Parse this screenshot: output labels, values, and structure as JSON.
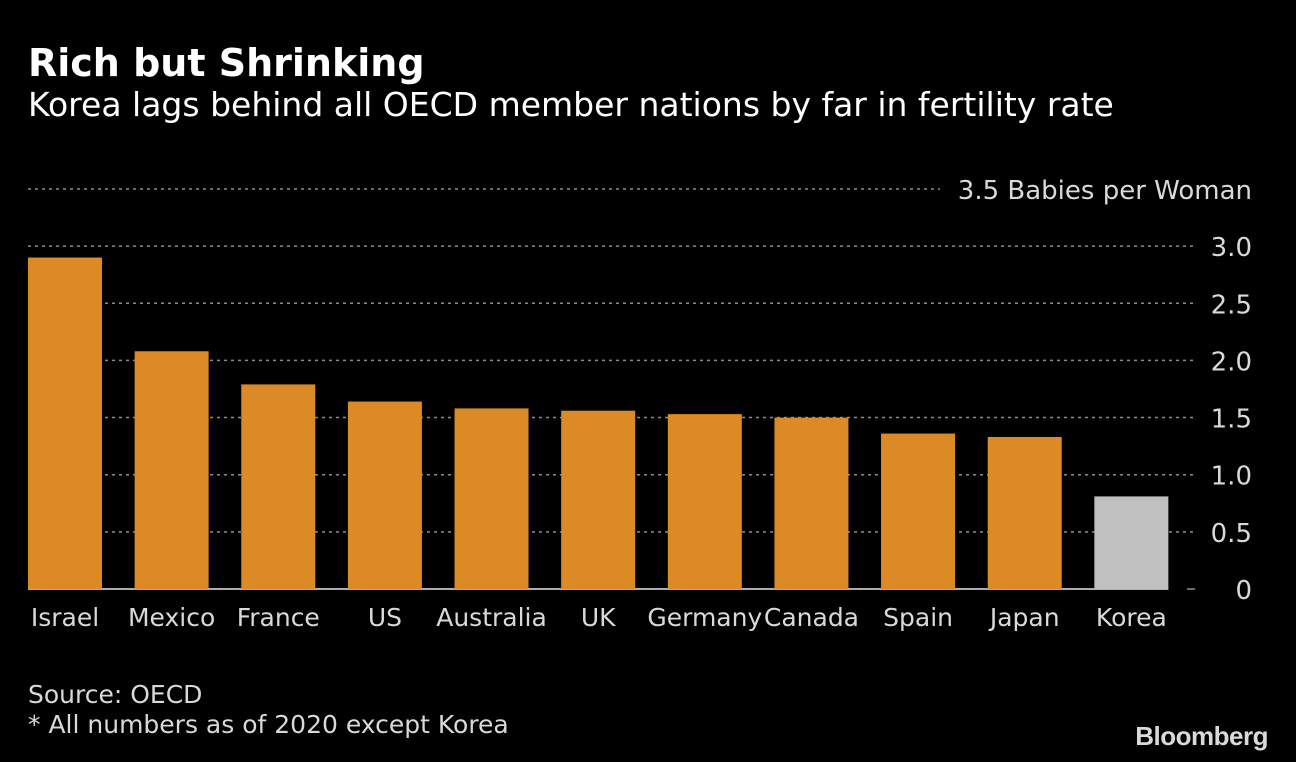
{
  "header": {
    "title": "Rich but Shrinking",
    "subtitle": "Korea lags behind all OECD member nations by far in fertility rate"
  },
  "footer": {
    "source": "Source: OECD",
    "note": "* All numbers as of 2020 except Korea",
    "brand": "Bloomberg"
  },
  "colors": {
    "bar": "#DB8A25",
    "highlight": "#C0C0C0",
    "grid": "#8c8c8c",
    "text": "#d9d9d9",
    "background": "#000000"
  },
  "chart_data": {
    "type": "bar",
    "title": "Rich but Shrinking",
    "subtitle": "Korea lags behind all OECD member nations by far in fertility rate",
    "ylabel": "Babies per Woman",
    "ylim": [
      0,
      3.5
    ],
    "yticks": [
      {
        "value": 0,
        "label": "0"
      },
      {
        "value": 0.5,
        "label": "0.5"
      },
      {
        "value": 1.0,
        "label": "1.0"
      },
      {
        "value": 1.5,
        "label": "1.5"
      },
      {
        "value": 2.0,
        "label": "2.0"
      },
      {
        "value": 2.5,
        "label": "2.5"
      },
      {
        "value": 3.0,
        "label": "3.0"
      },
      {
        "value": 3.5,
        "label": "3.5 Babies per Woman"
      }
    ],
    "categories": [
      "Israel",
      "Mexico",
      "France",
      "US",
      "Australia",
      "UK",
      "Germany",
      "Canada",
      "Spain",
      "Japan",
      "Korea"
    ],
    "values": [
      2.9,
      2.08,
      1.79,
      1.64,
      1.58,
      1.56,
      1.53,
      1.5,
      1.36,
      1.33,
      0.81
    ],
    "highlight": "Korea",
    "grid": true
  }
}
